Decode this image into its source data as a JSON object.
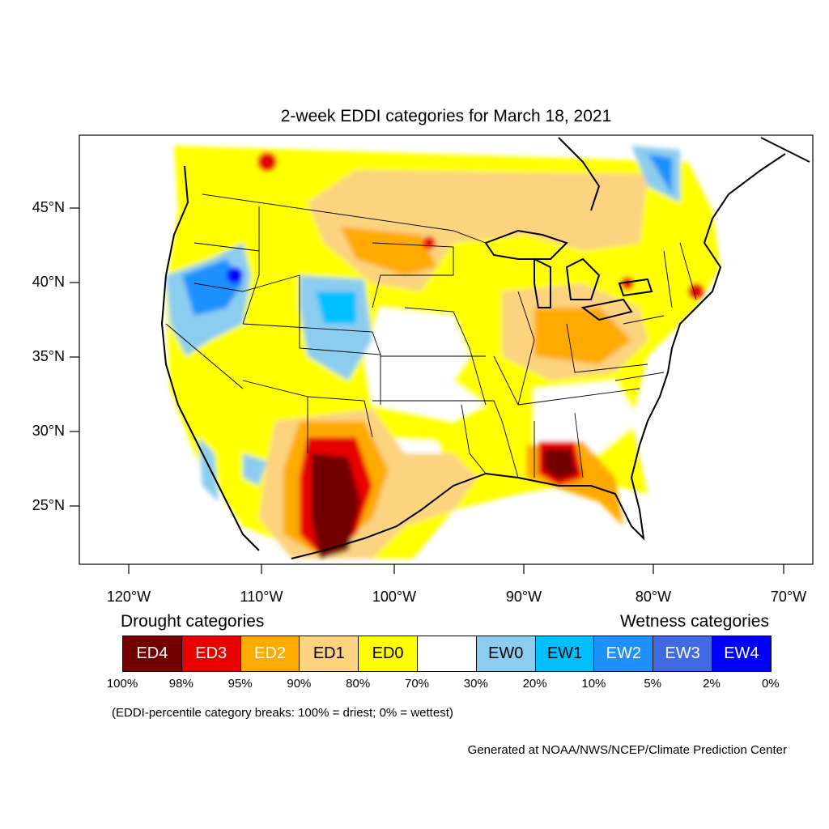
{
  "title": "2-week EDDI categories for March 18, 2021",
  "latitude_labels": [
    "45°N",
    "40°N",
    "35°N",
    "30°N",
    "25°N"
  ],
  "longitude_labels": [
    "120°W",
    "110°W",
    "100°W",
    "90°W",
    "80°W",
    "70°W"
  ],
  "legend": {
    "drought_heading": "Drought categories",
    "wetness_heading": "Wetness categories",
    "categories": [
      {
        "label": "ED4",
        "color": "#730000",
        "text_color": "#ffffff"
      },
      {
        "label": "ED3",
        "color": "#e60000",
        "text_color": "#ffffff"
      },
      {
        "label": "ED2",
        "color": "#ffaa00",
        "text_color": "#ffffff"
      },
      {
        "label": "ED1",
        "color": "#fcd37f",
        "text_color": "#000000"
      },
      {
        "label": "ED0",
        "color": "#ffff00",
        "text_color": "#000000"
      },
      {
        "label": "",
        "color": "#ffffff",
        "text_color": "#000000"
      },
      {
        "label": "EW0",
        "color": "#8ccdef",
        "text_color": "#000000"
      },
      {
        "label": "EW1",
        "color": "#00bfff",
        "text_color": "#000000"
      },
      {
        "label": "EW2",
        "color": "#1e90ff",
        "text_color": "#ffffff"
      },
      {
        "label": "EW3",
        "color": "#4169e1",
        "text_color": "#ffffff"
      },
      {
        "label": "EW4",
        "color": "#0000ff",
        "text_color": "#ffffff"
      }
    ],
    "percentiles": [
      "100%",
      "98%",
      "95%",
      "90%",
      "80%",
      "70%",
      "30%",
      "20%",
      "10%",
      "5%",
      "2%",
      "0%"
    ]
  },
  "note": "(EDDI-percentile category breaks: 100% = driest; 0% = wettest)",
  "credit": "Generated at NOAA/NWS/NCEP/Climate Prediction Center"
}
